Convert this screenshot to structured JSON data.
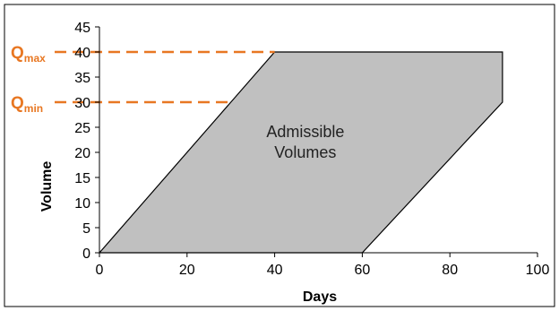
{
  "chart_data": {
    "type": "area",
    "title": "",
    "xlabel": "Days",
    "ylabel": "Volume",
    "xlim": [
      0,
      100
    ],
    "ylim": [
      0,
      45
    ],
    "x_ticks": [
      0,
      20,
      40,
      60,
      80,
      100
    ],
    "y_ticks": [
      0,
      5,
      10,
      15,
      20,
      25,
      30,
      35,
      40,
      45
    ],
    "grid": false,
    "legend": "none",
    "region": {
      "name": "Admissible Volumes",
      "label_lines": [
        "Admissible",
        "Volumes"
      ],
      "polygon": [
        [
          0,
          0
        ],
        [
          40,
          40
        ],
        [
          92,
          40
        ],
        [
          92,
          30
        ],
        [
          60,
          0
        ]
      ],
      "fill_color": "#c0c0c0",
      "edge_color": "#000000"
    },
    "reference_lines": [
      {
        "main": "Q",
        "sub": "max",
        "y": 40,
        "x_end": 40,
        "color": "#e87722"
      },
      {
        "main": "Q",
        "sub": "min",
        "y": 30,
        "x_end": 30,
        "color": "#e87722"
      }
    ]
  }
}
